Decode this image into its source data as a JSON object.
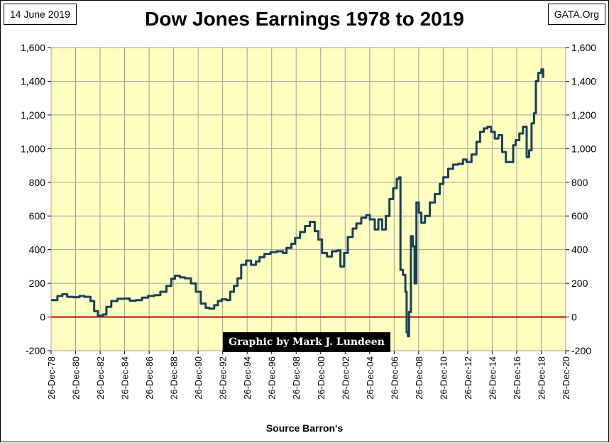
{
  "header": {
    "date": "14 June 2019",
    "source": "GATA.Org",
    "title": "Dow Jones Earnings 1978 to 2019"
  },
  "footer": {
    "xlabel": "Source Barron's",
    "credit": "Graphic by Mark J. Lundeen"
  },
  "colors": {
    "plot_background": "#ffffc0",
    "series_line": "#17405a",
    "zero_line": "#c00000",
    "grid": "#a0a0a0"
  },
  "chart_data": {
    "type": "line",
    "title": "Dow Jones Earnings 1978 to 2019",
    "xlabel": "Source Barron's",
    "ylabel": "",
    "ylim": [
      -200,
      1600
    ],
    "xlim": [
      "1978-12-26",
      "2020-12-26"
    ],
    "yticks": [
      -200,
      0,
      200,
      400,
      600,
      800,
      1000,
      1200,
      1400,
      1600
    ],
    "ytick_labels": [
      "-200",
      "0",
      "200",
      "400",
      "600",
      "800",
      "1,000",
      "1,200",
      "1,400",
      "1,600"
    ],
    "xtick_labels": [
      "26-Dec-78",
      "26-Dec-80",
      "26-Dec-82",
      "26-Dec-84",
      "26-Dec-86",
      "26-Dec-88",
      "26-Dec-90",
      "26-Dec-92",
      "26-Dec-94",
      "26-Dec-96",
      "26-Dec-98",
      "26-Dec-00",
      "26-Dec-02",
      "26-Dec-04",
      "26-Dec-06",
      "26-Dec-08",
      "26-Dec-10",
      "26-Dec-12",
      "26-Dec-14",
      "26-Dec-16",
      "26-Dec-18",
      "26-Dec-20"
    ],
    "grid": true,
    "secondary_y_axis": true,
    "reference_lines": [
      {
        "y": 0
      }
    ],
    "series": [
      {
        "points": [
          [
            1978.99,
            100
          ],
          [
            1979.5,
            125
          ],
          [
            1979.9,
            135
          ],
          [
            1980.3,
            120
          ],
          [
            1980.8,
            118
          ],
          [
            1981.3,
            125
          ],
          [
            1981.7,
            120
          ],
          [
            1982.2,
            95
          ],
          [
            1982.5,
            35
          ],
          [
            1982.8,
            8
          ],
          [
            1983.2,
            15
          ],
          [
            1983.5,
            60
          ],
          [
            1983.9,
            95
          ],
          [
            1984.4,
            108
          ],
          [
            1984.9,
            110
          ],
          [
            1985.4,
            97
          ],
          [
            1985.9,
            100
          ],
          [
            1986.4,
            115
          ],
          [
            1986.9,
            125
          ],
          [
            1987.4,
            130
          ],
          [
            1987.9,
            150
          ],
          [
            1988.4,
            185
          ],
          [
            1988.8,
            228
          ],
          [
            1989.1,
            245
          ],
          [
            1989.5,
            235
          ],
          [
            1989.9,
            230
          ],
          [
            1990.4,
            200
          ],
          [
            1990.8,
            150
          ],
          [
            1991.2,
            80
          ],
          [
            1991.6,
            55
          ],
          [
            1991.9,
            50
          ],
          [
            1992.3,
            70
          ],
          [
            1992.6,
            95
          ],
          [
            1992.9,
            105
          ],
          [
            1993.3,
            100
          ],
          [
            1993.6,
            150
          ],
          [
            1993.9,
            185
          ],
          [
            1994.2,
            230
          ],
          [
            1994.5,
            310
          ],
          [
            1994.9,
            335
          ],
          [
            1995.3,
            310
          ],
          [
            1995.7,
            330
          ],
          [
            1996.0,
            355
          ],
          [
            1996.4,
            375
          ],
          [
            1996.9,
            385
          ],
          [
            1997.4,
            390
          ],
          [
            1997.9,
            380
          ],
          [
            1998.2,
            410
          ],
          [
            1998.6,
            435
          ],
          [
            1998.9,
            470
          ],
          [
            1999.3,
            505
          ],
          [
            1999.7,
            540
          ],
          [
            2000.1,
            565
          ],
          [
            2000.5,
            510
          ],
          [
            2000.8,
            460
          ],
          [
            2001.1,
            380
          ],
          [
            2001.5,
            360
          ],
          [
            2001.9,
            390
          ],
          [
            2002.3,
            395
          ],
          [
            2002.6,
            300
          ],
          [
            2002.9,
            380
          ],
          [
            2003.2,
            475
          ],
          [
            2003.6,
            525
          ],
          [
            2003.9,
            555
          ],
          [
            2004.3,
            590
          ],
          [
            2004.7,
            605
          ],
          [
            2005.0,
            580
          ],
          [
            2005.4,
            520
          ],
          [
            2005.7,
            580
          ],
          [
            2006.0,
            520
          ],
          [
            2006.3,
            600
          ],
          [
            2006.6,
            700
          ],
          [
            2006.9,
            765
          ],
          [
            2007.2,
            820
          ],
          [
            2007.4,
            830
          ],
          [
            2007.5,
            280
          ],
          [
            2007.7,
            250
          ],
          [
            2007.9,
            150
          ],
          [
            2008.0,
            -90
          ],
          [
            2008.1,
            -115
          ],
          [
            2008.2,
            30
          ],
          [
            2008.35,
            480
          ],
          [
            2008.5,
            420
          ],
          [
            2008.65,
            200
          ],
          [
            2008.8,
            680
          ],
          [
            2009.0,
            620
          ],
          [
            2009.2,
            560
          ],
          [
            2009.5,
            600
          ],
          [
            2009.9,
            680
          ],
          [
            2010.3,
            730
          ],
          [
            2010.7,
            790
          ],
          [
            2011.0,
            830
          ],
          [
            2011.4,
            880
          ],
          [
            2011.8,
            905
          ],
          [
            2012.2,
            910
          ],
          [
            2012.6,
            935
          ],
          [
            2012.9,
            920
          ],
          [
            2013.3,
            965
          ],
          [
            2013.7,
            1040
          ],
          [
            2014.0,
            1100
          ],
          [
            2014.3,
            1120
          ],
          [
            2014.6,
            1130
          ],
          [
            2014.9,
            1100
          ],
          [
            2015.2,
            1060
          ],
          [
            2015.5,
            1080
          ],
          [
            2015.8,
            980
          ],
          [
            2016.1,
            920
          ],
          [
            2016.4,
            920
          ],
          [
            2016.7,
            1020
          ],
          [
            2016.9,
            1050
          ],
          [
            2017.2,
            1090
          ],
          [
            2017.5,
            1130
          ],
          [
            2017.8,
            950
          ],
          [
            2018.0,
            990
          ],
          [
            2018.2,
            1150
          ],
          [
            2018.4,
            1210
          ],
          [
            2018.55,
            1400
          ],
          [
            2018.75,
            1450
          ],
          [
            2019.0,
            1470
          ],
          [
            2019.15,
            1420
          ]
        ]
      }
    ]
  }
}
